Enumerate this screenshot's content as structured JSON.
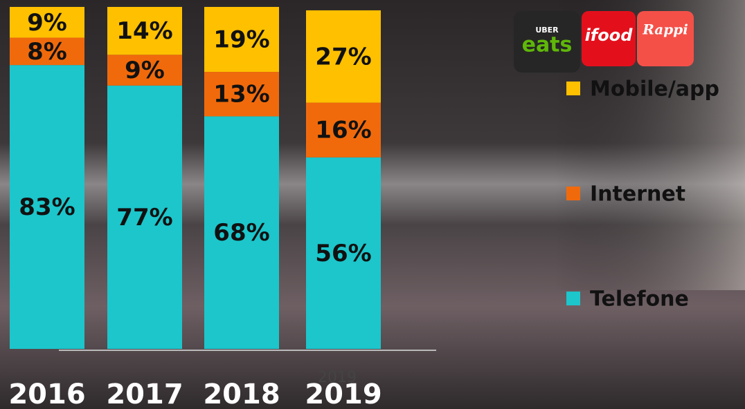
{
  "chart_data": {
    "type": "stacked-bar",
    "categories": [
      "2016",
      "2017",
      "2018",
      "2019"
    ],
    "series": [
      {
        "name": "Telefone",
        "color": "#1cc6cb",
        "values": [
          83,
          77,
          68,
          56
        ],
        "value_labels": [
          "83%",
          "77%",
          "68%",
          "56%"
        ]
      },
      {
        "name": "Internet",
        "color": "#f06a0c",
        "values": [
          8,
          9,
          13,
          16
        ],
        "value_labels": [
          "8%",
          "9%",
          "13%",
          "16%"
        ]
      },
      {
        "name": "Mobile/app",
        "color": "#ffc000",
        "values": [
          9,
          14,
          19,
          27
        ],
        "value_labels": [
          "9%",
          "14%",
          "19%",
          "27%"
        ]
      }
    ],
    "ylim": [
      0,
      100
    ],
    "annotation": "2019"
  },
  "logos": [
    "UBER",
    "eats",
    "ifood",
    "Rappi"
  ]
}
